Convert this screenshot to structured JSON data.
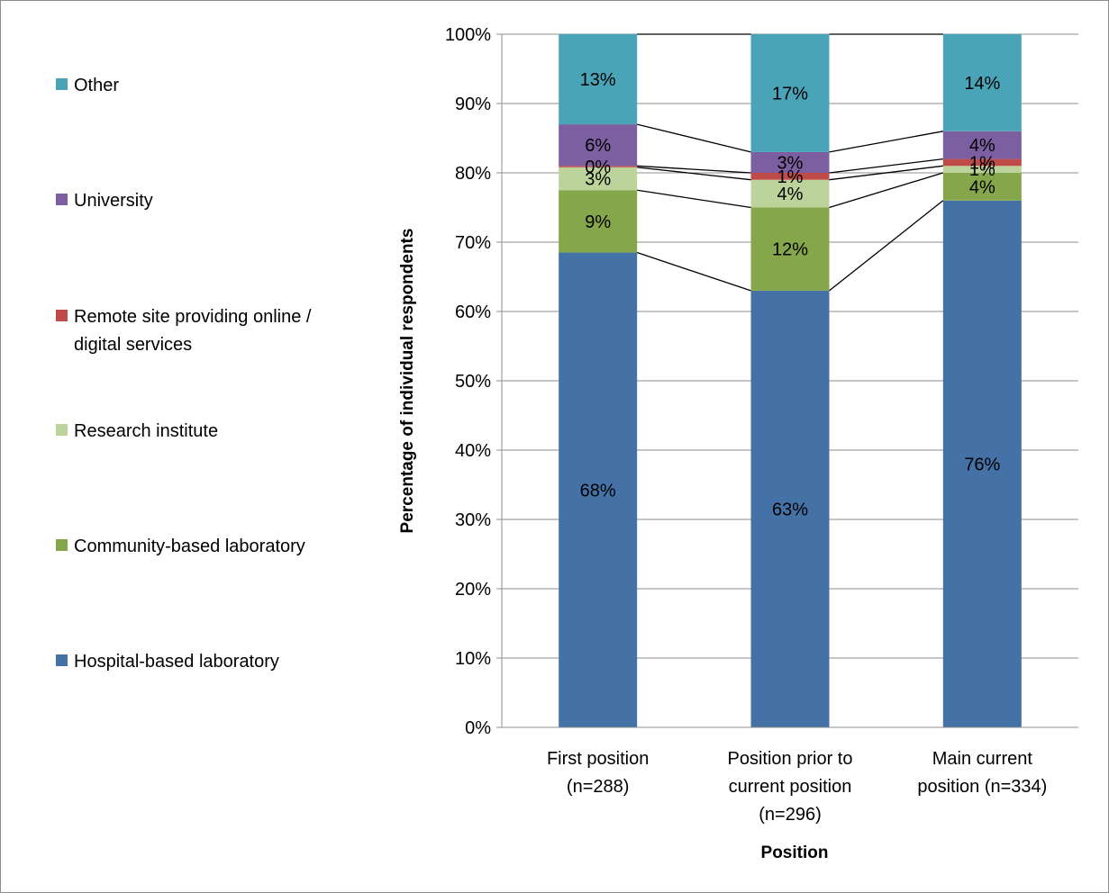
{
  "chart_data": {
    "type": "bar",
    "stacked": true,
    "categories": [
      [
        "First position",
        "(n=288)"
      ],
      [
        "Position prior to",
        "current position",
        "(n=296)"
      ],
      [
        "Main current",
        "position (n=334)"
      ]
    ],
    "series": [
      {
        "name": "Hospital-based laboratory",
        "color": "#4472a6",
        "values": [
          68.5,
          63,
          76
        ],
        "labels": [
          "68%",
          "63%",
          "76%"
        ]
      },
      {
        "name": "Community-based laboratory",
        "color": "#85a64a",
        "values": [
          9,
          12,
          4
        ],
        "labels": [
          "9%",
          "12%",
          "4%"
        ]
      },
      {
        "name": "Research institute",
        "color": "#bcd49b",
        "values": [
          3.3,
          4,
          1
        ],
        "labels": [
          "3%",
          "4%",
          "1%"
        ]
      },
      {
        "name": "Remote site providing online / digital services",
        "legend_lines": [
          "Remote site providing online /",
          "digital services"
        ],
        "color": "#be4b48",
        "values": [
          0.2,
          1,
          1
        ],
        "labels": [
          "0%",
          "1%",
          "1%"
        ]
      },
      {
        "name": "University",
        "color": "#7b5fa0",
        "values": [
          6,
          3,
          4
        ],
        "labels": [
          "6%",
          "3%",
          "4%"
        ]
      },
      {
        "name": "Other",
        "color": "#4aa4b8",
        "values": [
          13,
          17,
          14
        ],
        "labels": [
          "13%",
          "17%",
          "14%"
        ]
      }
    ],
    "ylim": [
      0,
      100
    ],
    "yticks": [
      "0%",
      "10%",
      "20%",
      "30%",
      "40%",
      "50%",
      "60%",
      "70%",
      "80%",
      "90%",
      "100%"
    ],
    "ylabel": "Percentage of individual respondents",
    "xlabel": "Position",
    "grid": true,
    "series_lines": true,
    "legend_position": "left"
  }
}
